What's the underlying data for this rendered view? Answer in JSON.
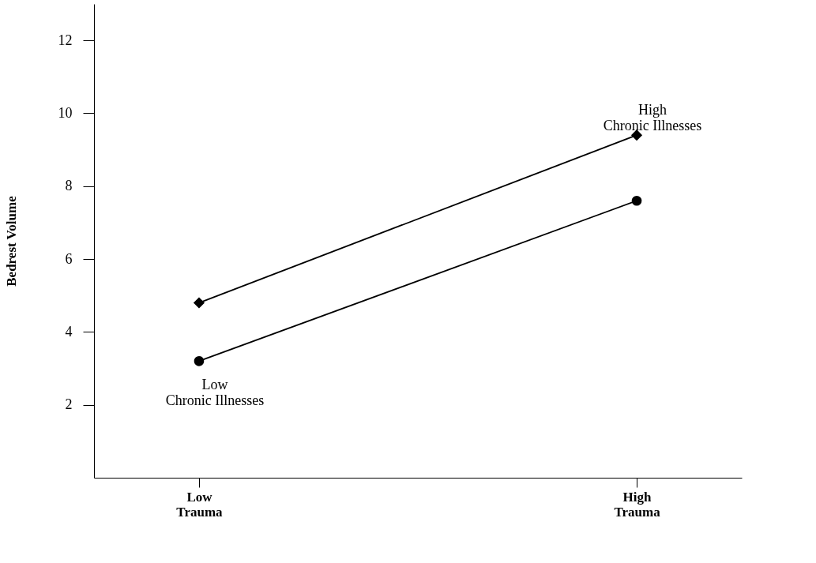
{
  "chart_data": {
    "type": "line",
    "ylabel": "Bedrest Volume",
    "categories": [
      "Low\nTrauma",
      "High\nTrauma"
    ],
    "series": [
      {
        "name": "High\nChronic Illnesses",
        "color": "#000000",
        "marker": "diamond",
        "values": [
          4.8,
          9.4
        ]
      },
      {
        "name": "Low\nChronic Illnesses",
        "color": "#000000",
        "marker": "circle",
        "values": [
          3.2,
          7.6
        ]
      }
    ],
    "ylim": [
      0,
      13
    ],
    "yticks": [
      2,
      4,
      6,
      8,
      10,
      12
    ],
    "grid": false,
    "line_style": "solid"
  }
}
